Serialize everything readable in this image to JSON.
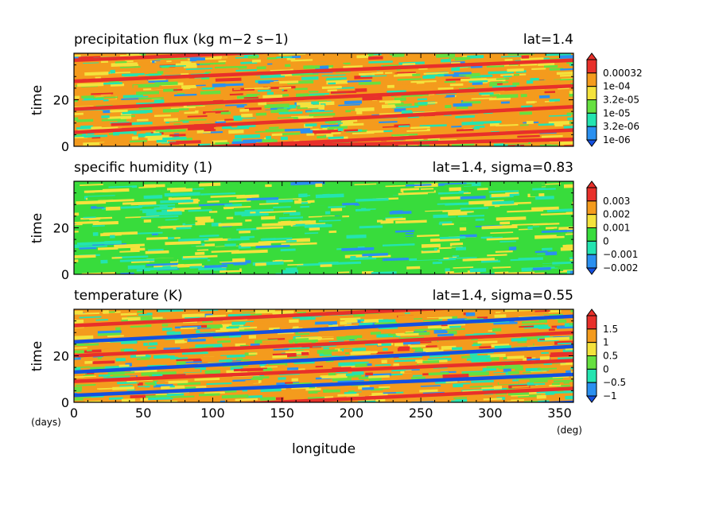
{
  "chart_data": [
    {
      "type": "heatmap",
      "title": "precipitation flux (kg m−2 s−1)",
      "subtitle": "lat=1.4",
      "ylabel": "time",
      "ylim": [
        0,
        40
      ],
      "yticks": [
        0,
        20
      ],
      "xlim": [
        0,
        360
      ],
      "colorbar": {
        "levels": [
          "0.00032",
          "1e-04",
          "3.2e-05",
          "1e-05",
          "3.2e-06",
          "1e-06"
        ],
        "colors": [
          "#e8302a",
          "#f49b1d",
          "#f4e23c",
          "#66e040",
          "#24e4b0",
          "#2a90f0"
        ],
        "below_color": "#1450e0"
      },
      "pattern": {
        "bands": "eastward-propagating red streaks",
        "band_value": "0.00032",
        "background": [
          "1e-04",
          "3.2e-05",
          "1e-05",
          "3.2e-06"
        ]
      }
    },
    {
      "type": "heatmap",
      "title": "specific humidity (1)",
      "subtitle": "lat=1.4, sigma=0.83",
      "ylabel": "time",
      "ylim": [
        0,
        40
      ],
      "yticks": [
        0,
        20
      ],
      "xlim": [
        0,
        360
      ],
      "colorbar": {
        "levels": [
          "0.003",
          "0.002",
          "0.001",
          "0",
          "−0.001",
          "−0.002"
        ],
        "colors": [
          "#e8302a",
          "#f49b1d",
          "#f4e23c",
          "#38dc3c",
          "#24e4b0",
          "#2a90f0"
        ],
        "below_color": "#1450e0"
      },
      "pattern": {
        "bands": "weak",
        "band_value": "0",
        "background": [
          "0",
          "−0.001",
          "0.001"
        ]
      }
    },
    {
      "type": "heatmap",
      "title": "temperature (K)",
      "subtitle": "lat=1.4, sigma=0.55",
      "ylabel": "time",
      "ylim": [
        0,
        40
      ],
      "yticks": [
        0,
        20
      ],
      "xlim": [
        0,
        360
      ],
      "xlabel": "longitude",
      "xticks": [
        0,
        50,
        100,
        150,
        200,
        250,
        300,
        350
      ],
      "xunit": "(deg)",
      "yunit": "(days)",
      "colorbar": {
        "levels": [
          "1.5",
          "1",
          "0.5",
          "0",
          "−0.5",
          "−1"
        ],
        "colors": [
          "#e8302a",
          "#f49b1d",
          "#f4e23c",
          "#66e040",
          "#24e4b0",
          "#2a90f0"
        ],
        "below_color": "#1450e0"
      },
      "pattern": {
        "bands": "alternating red and blue eastward-propagating streaks",
        "band_value": "1.5",
        "background": [
          "1",
          "0.5",
          "0",
          "−0.5"
        ]
      }
    }
  ]
}
